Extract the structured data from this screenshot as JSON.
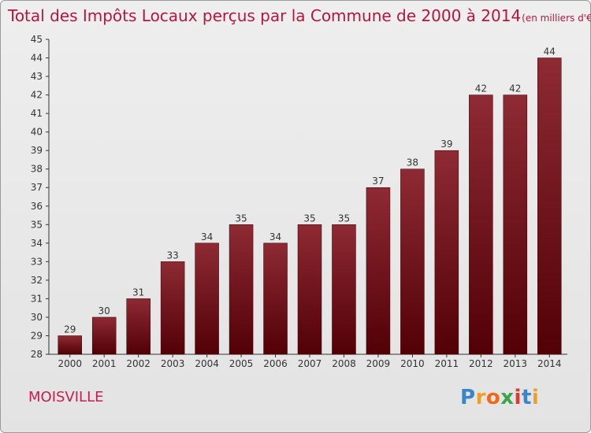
{
  "chart_data": {
    "type": "bar",
    "title": "Total des Impôts Locaux perçus par la Commune de 2000 à 2014",
    "unit": "(en milliers d'€)",
    "categories": [
      "2000",
      "2001",
      "2002",
      "2003",
      "2004",
      "2005",
      "2006",
      "2007",
      "2008",
      "2009",
      "2010",
      "2011",
      "2012",
      "2013",
      "2014"
    ],
    "values": [
      29,
      30,
      31,
      33,
      34,
      35,
      34,
      35,
      35,
      37,
      38,
      39,
      42,
      42,
      44
    ],
    "ylim": [
      28,
      45
    ],
    "yticks": [
      28,
      29,
      30,
      31,
      32,
      33,
      34,
      35,
      36,
      37,
      38,
      39,
      40,
      41,
      42,
      43,
      44,
      45
    ],
    "xlabel": "",
    "ylabel": "",
    "grid": false,
    "bar_color": "#6e0f16"
  },
  "commune": "MOISVILLE",
  "logo": {
    "letters": [
      "P",
      "r",
      "o",
      "x",
      "i",
      "t",
      "i"
    ],
    "colors": [
      "#3a84c9",
      "#f0a020",
      "#ee6a1a",
      "#3aa44a",
      "#e23a2a",
      "#3a84c9",
      "#f0a020"
    ]
  }
}
